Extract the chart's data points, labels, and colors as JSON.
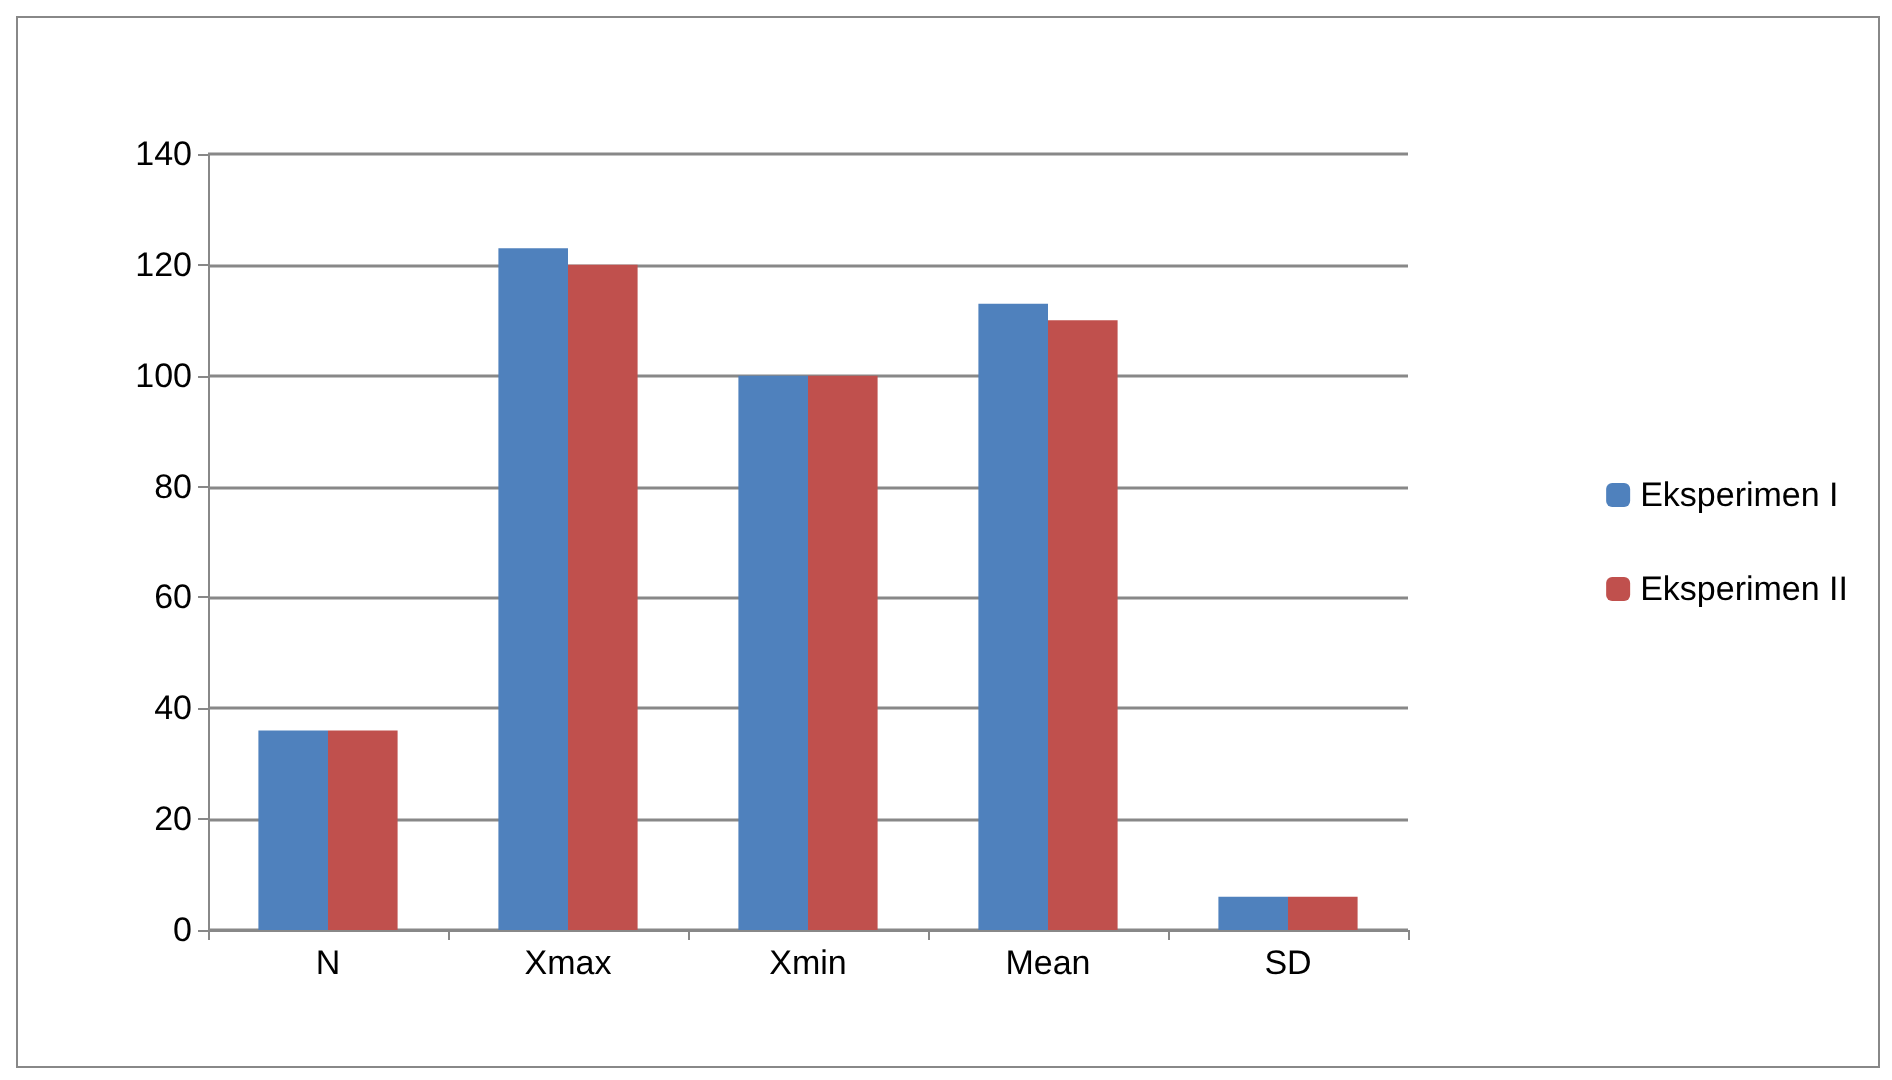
{
  "chart_data": {
    "type": "bar",
    "categories": [
      "N",
      "Xmax",
      "Xmin",
      "Mean",
      "SD"
    ],
    "series": [
      {
        "name": "Eksperimen I",
        "color": "#4f81bd",
        "values": [
          36,
          123,
          100,
          113,
          6
        ]
      },
      {
        "name": "Eksperimen II",
        "color": "#c0504d",
        "values": [
          36,
          120,
          100,
          110,
          6
        ]
      }
    ],
    "ylim": [
      0,
      140
    ],
    "yticks": [
      0,
      20,
      40,
      60,
      80,
      100,
      120,
      140
    ],
    "grid": "y",
    "legend": "right"
  }
}
